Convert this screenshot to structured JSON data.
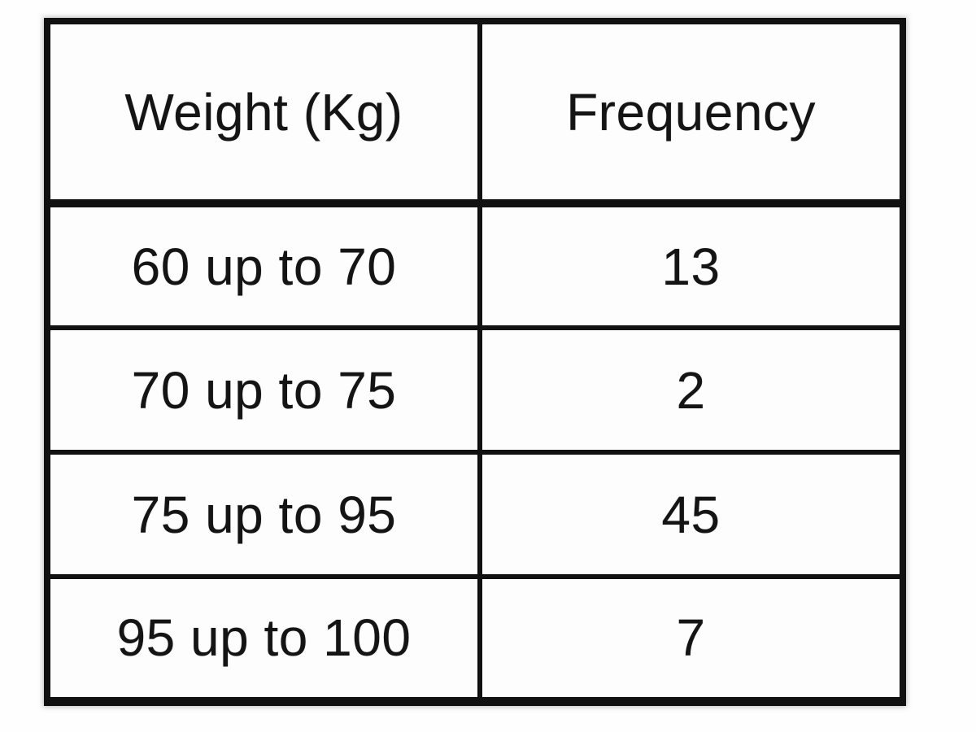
{
  "table": {
    "headers": {
      "weight": "Weight (Kg)",
      "frequency": "Frequency"
    },
    "rows": [
      {
        "weight": "60 up to 70",
        "frequency": "13"
      },
      {
        "weight": "70 up to 75",
        "frequency": "2"
      },
      {
        "weight": "75 up to 95",
        "frequency": "45"
      },
      {
        "weight": "95 up to 100",
        "frequency": "7"
      }
    ]
  },
  "chart_data": {
    "type": "table",
    "title": "",
    "columns": [
      "Weight (Kg)",
      "Frequency"
    ],
    "rows": [
      [
        "60 up to 70",
        13
      ],
      [
        "70 up to 75",
        2
      ],
      [
        "75 up to 95",
        45
      ],
      [
        "95 up to 100",
        7
      ]
    ],
    "categories": [
      "60 up to 70",
      "70 up to 75",
      "75 up to 95",
      "95 up to 100"
    ],
    "values": [
      13,
      2,
      45,
      7
    ],
    "layout_hints": {
      "grid": "heavy black cell borders",
      "header_separator": "extra thick",
      "text_align": "center"
    }
  },
  "colors": {
    "border": "#111111",
    "text": "#141414",
    "background": "#fefefe",
    "cell_background": "#fdfdfd"
  }
}
